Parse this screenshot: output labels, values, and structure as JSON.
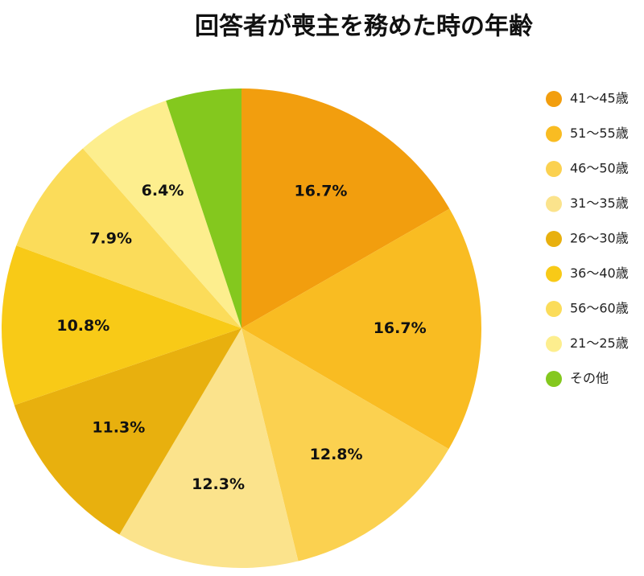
{
  "chart_data": {
    "type": "pie",
    "title": "回答者が喪主を務めた時の年齢",
    "categories": [
      "41〜45歳",
      "51〜55歳",
      "46〜50歳",
      "31〜35歳",
      "26〜30歳",
      "36〜40歳",
      "56〜60歳",
      "21〜25歳",
      "その他"
    ],
    "values": [
      16.7,
      16.7,
      12.8,
      12.3,
      11.3,
      10.8,
      7.9,
      6.4,
      5.1
    ],
    "value_labels": [
      "16.7%",
      "16.7%",
      "12.8%",
      "12.3%",
      "11.3%",
      "10.8%",
      "7.9%",
      "6.4%",
      null
    ],
    "colors": [
      "#f29e0e",
      "#f9bc22",
      "#fbd150",
      "#fbe38c",
      "#e8b00e",
      "#f8ca17",
      "#fbdc5a",
      "#fdee8e",
      "#84c81e"
    ],
    "legend": "right"
  }
}
